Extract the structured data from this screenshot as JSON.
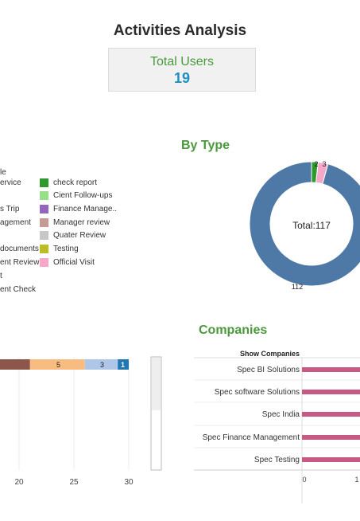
{
  "header": {
    "title": "Activities Analysis",
    "total_users_label": "Total Users",
    "total_users_value": "19"
  },
  "by_type": {
    "title": "By Type",
    "legend_left": [
      "le",
      "ervice",
      "s Trip",
      "agement",
      "documents",
      "ent Review",
      "t",
      "ent Check"
    ],
    "legend_right": [
      {
        "label": "check report",
        "color": "#2e9a2e"
      },
      {
        "label": "Cient Follow-ups",
        "color": "#98df8a"
      },
      {
        "label": "Finance Manage..",
        "color": "#9467bd"
      },
      {
        "label": "Manager review",
        "color": "#c49c94"
      },
      {
        "label": "Quater Review",
        "color": "#c7c7c7"
      },
      {
        "label": "Testing",
        "color": "#bcbd22"
      },
      {
        "label": "Official Visit",
        "color": "#f7a8c8"
      }
    ],
    "donut": {
      "center_label": "Total:117",
      "segments": [
        {
          "value": 112,
          "color": "#4e79a7",
          "label": "112"
        },
        {
          "value": 2,
          "color": "#2e9a2e",
          "label": "2"
        },
        {
          "value": 3,
          "color": "#f7a8c8",
          "label": "3"
        }
      ]
    }
  },
  "bar_chart": {
    "segments": [
      {
        "value": 21,
        "color": "#8c564b",
        "label": ""
      },
      {
        "value": 5,
        "color": "#f8bc80",
        "label": "5"
      },
      {
        "value": 3,
        "color": "#aec7e8",
        "label": "3"
      },
      {
        "value": 1,
        "color": "#1f77b4",
        "label": "1"
      }
    ],
    "x_ticks": [
      "20",
      "25",
      "30"
    ]
  },
  "companies": {
    "title": "Companies",
    "header": "Show Companies",
    "items": [
      "Spec BI Solutions",
      "Spec software Solutions",
      "Spec India",
      "Spec Finance Management",
      "Spec  Testing"
    ],
    "x_ticks": [
      "0",
      "1"
    ],
    "bar_color": "#c75a85"
  }
}
